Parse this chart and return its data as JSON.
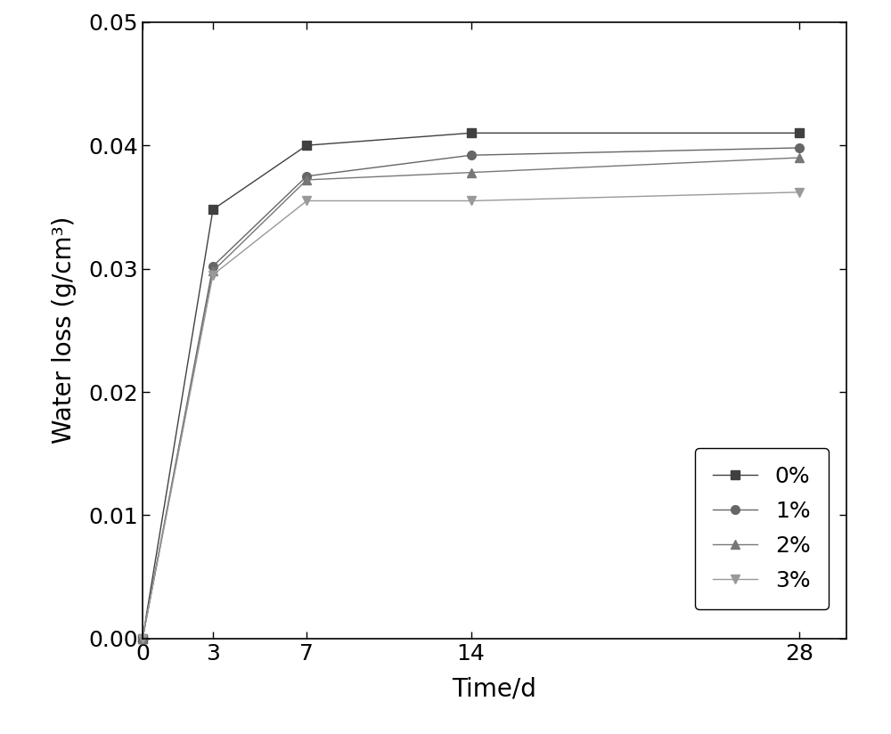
{
  "x": [
    0,
    3,
    7,
    14,
    28
  ],
  "series": {
    "0%": {
      "y": [
        0.0,
        0.0348,
        0.04,
        0.041,
        0.041
      ],
      "color": "#404040",
      "marker": "s",
      "label": "0%",
      "linewidth": 1.0,
      "markersize": 7
    },
    "1%": {
      "y": [
        0.0,
        0.0302,
        0.0375,
        0.0392,
        0.0398
      ],
      "color": "#666666",
      "marker": "o",
      "label": "1%",
      "linewidth": 1.0,
      "markersize": 7
    },
    "2%": {
      "y": [
        0.0,
        0.0298,
        0.0372,
        0.0378,
        0.039
      ],
      "color": "#777777",
      "marker": "^",
      "label": "2%",
      "linewidth": 1.0,
      "markersize": 7
    },
    "3%": {
      "y": [
        0.0,
        0.0295,
        0.0355,
        0.0355,
        0.0362
      ],
      "color": "#999999",
      "marker": "v",
      "label": "3%",
      "linewidth": 1.0,
      "markersize": 7
    }
  },
  "xlabel": "Time/d",
  "ylabel": "Water loss (g/cm³)",
  "xlim": [
    0,
    30
  ],
  "ylim": [
    0.0,
    0.05
  ],
  "xticks": [
    0,
    3,
    7,
    14,
    28
  ],
  "yticks": [
    0.0,
    0.01,
    0.02,
    0.03,
    0.04,
    0.05
  ],
  "xlabel_fontsize": 20,
  "ylabel_fontsize": 20,
  "tick_fontsize": 18,
  "legend_fontsize": 18,
  "background_color": "#ffffff"
}
